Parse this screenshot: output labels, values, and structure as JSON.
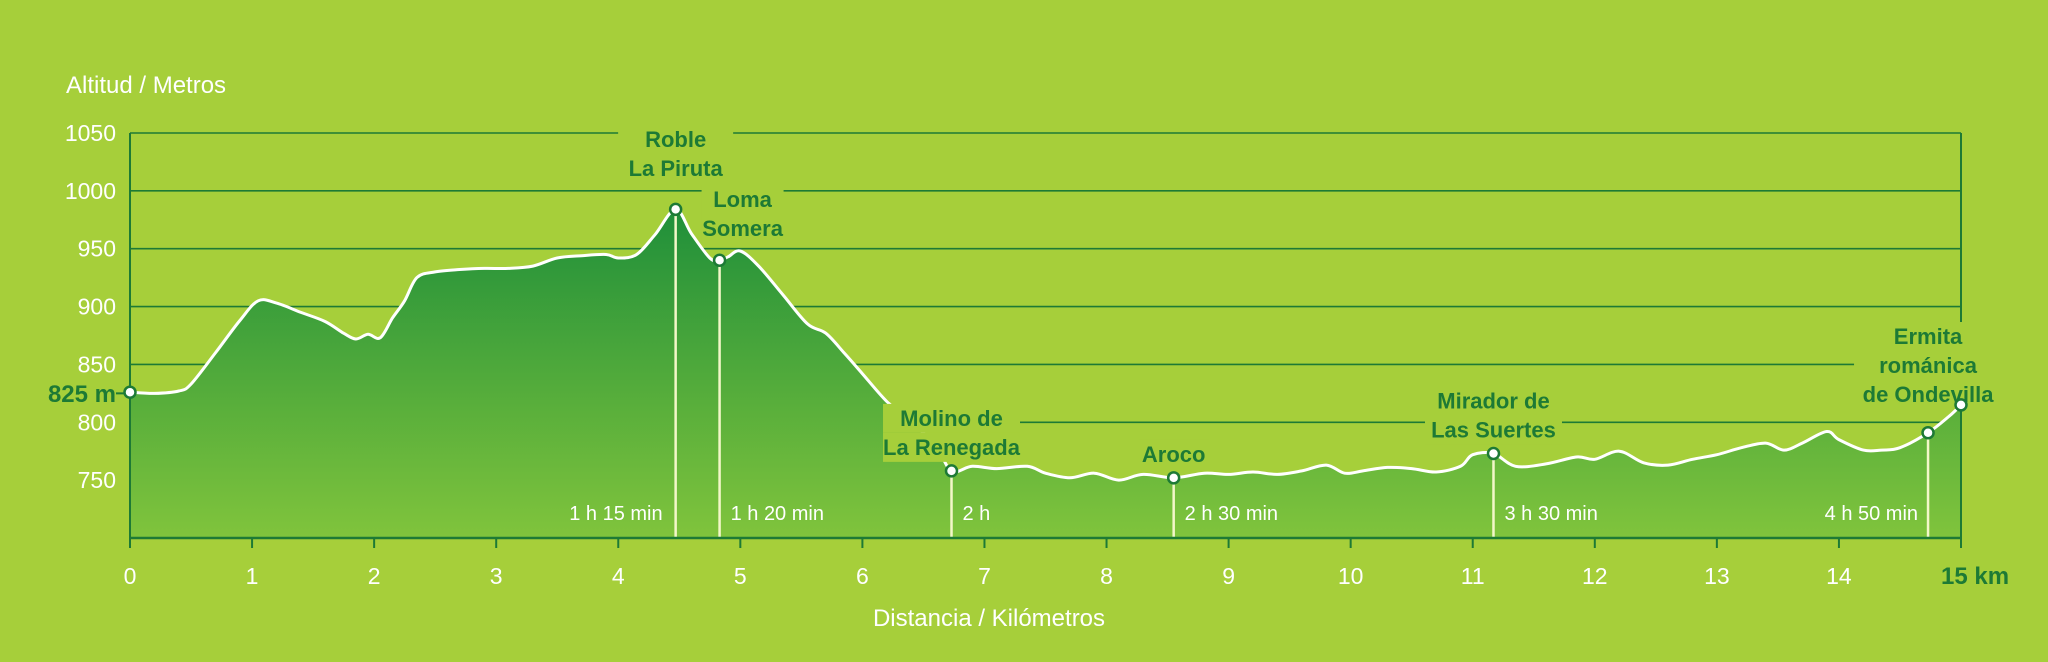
{
  "chart_data": {
    "type": "area",
    "ylabel": "Altitud / Metros",
    "xlabel": "Distancia / Kilómetros",
    "xlim": [
      0,
      15
    ],
    "ylim": [
      700,
      1050
    ],
    "yticks": [
      750,
      800,
      850,
      900,
      950,
      1000,
      1050
    ],
    "xticks": [
      0,
      1,
      2,
      3,
      4,
      5,
      6,
      7,
      8,
      9,
      10,
      11,
      12,
      13,
      14
    ],
    "x_end_label": "15 km",
    "start_label": "825 m",
    "grid": true,
    "colors": {
      "background": "#a6cf3a",
      "area_top": "#1f8f3a",
      "area_bottom": "#80c43c",
      "grid": "#1d7a35",
      "profile": "#ffffff",
      "labels": "#1d7a35"
    },
    "profile": {
      "x": [
        0,
        0.2,
        0.4,
        0.5,
        0.7,
        0.9,
        1.05,
        1.2,
        1.4,
        1.6,
        1.75,
        1.85,
        1.95,
        2.05,
        2.15,
        2.25,
        2.35,
        2.5,
        2.7,
        2.9,
        3.1,
        3.3,
        3.5,
        3.7,
        3.9,
        4.0,
        4.15,
        4.3,
        4.47,
        4.6,
        4.75,
        4.83,
        4.9,
        5.0,
        5.15,
        5.35,
        5.55,
        5.7,
        5.85,
        6.0,
        6.2,
        6.4,
        6.6,
        6.73,
        6.9,
        7.1,
        7.35,
        7.5,
        7.7,
        7.9,
        8.1,
        8.3,
        8.55,
        8.8,
        9.0,
        9.2,
        9.4,
        9.6,
        9.8,
        9.95,
        10.1,
        10.3,
        10.5,
        10.7,
        10.9,
        11.0,
        11.17,
        11.35,
        11.6,
        11.85,
        12.0,
        12.2,
        12.4,
        12.6,
        12.8,
        13.0,
        13.2,
        13.4,
        13.55,
        13.7,
        13.9,
        14.0,
        14.2,
        14.35,
        14.5,
        14.73,
        14.9,
        15.0
      ],
      "y": [
        826,
        825,
        827,
        833,
        860,
        888,
        905,
        903,
        895,
        887,
        877,
        872,
        876,
        873,
        890,
        905,
        925,
        930,
        932,
        933,
        933,
        935,
        942,
        944,
        945,
        942,
        945,
        962,
        984,
        963,
        942,
        940,
        943,
        948,
        935,
        910,
        885,
        877,
        860,
        842,
        818,
        800,
        780,
        758,
        762,
        760,
        762,
        756,
        752,
        756,
        750,
        755,
        752,
        756,
        755,
        757,
        755,
        758,
        763,
        756,
        758,
        761,
        760,
        757,
        762,
        772,
        773,
        762,
        764,
        770,
        768,
        775,
        765,
        763,
        768,
        772,
        778,
        782,
        776,
        782,
        792,
        785,
        776,
        776,
        778,
        791,
        805,
        815
      ]
    },
    "waypoints": [
      {
        "name": [
          "Roble",
          "La Piruta"
        ],
        "x": 4.47,
        "y": 984,
        "time": "1 h 15 min",
        "label_pos": "top"
      },
      {
        "name": [
          "Loma",
          "Somera"
        ],
        "x": 4.83,
        "y": 940,
        "time": "1 h 20 min",
        "label_pos": "right"
      },
      {
        "name": [
          "Molino de",
          "La Renegada"
        ],
        "x": 6.73,
        "y": 758,
        "time": "2 h",
        "label_pos": "top"
      },
      {
        "name": [
          "Aroco"
        ],
        "x": 8.55,
        "y": 752,
        "time": "2 h 30 min",
        "label_pos": "top"
      },
      {
        "name": [
          "Mirador de",
          "Las Suertes"
        ],
        "x": 11.17,
        "y": 773,
        "time": "3 h 30 min",
        "label_pos": "top"
      },
      {
        "name": [
          "Ermita",
          "románica",
          "de Ondevilla"
        ],
        "x": 14.73,
        "y": 791,
        "time": "4 h 50 min",
        "label_pos": "top"
      }
    ]
  }
}
